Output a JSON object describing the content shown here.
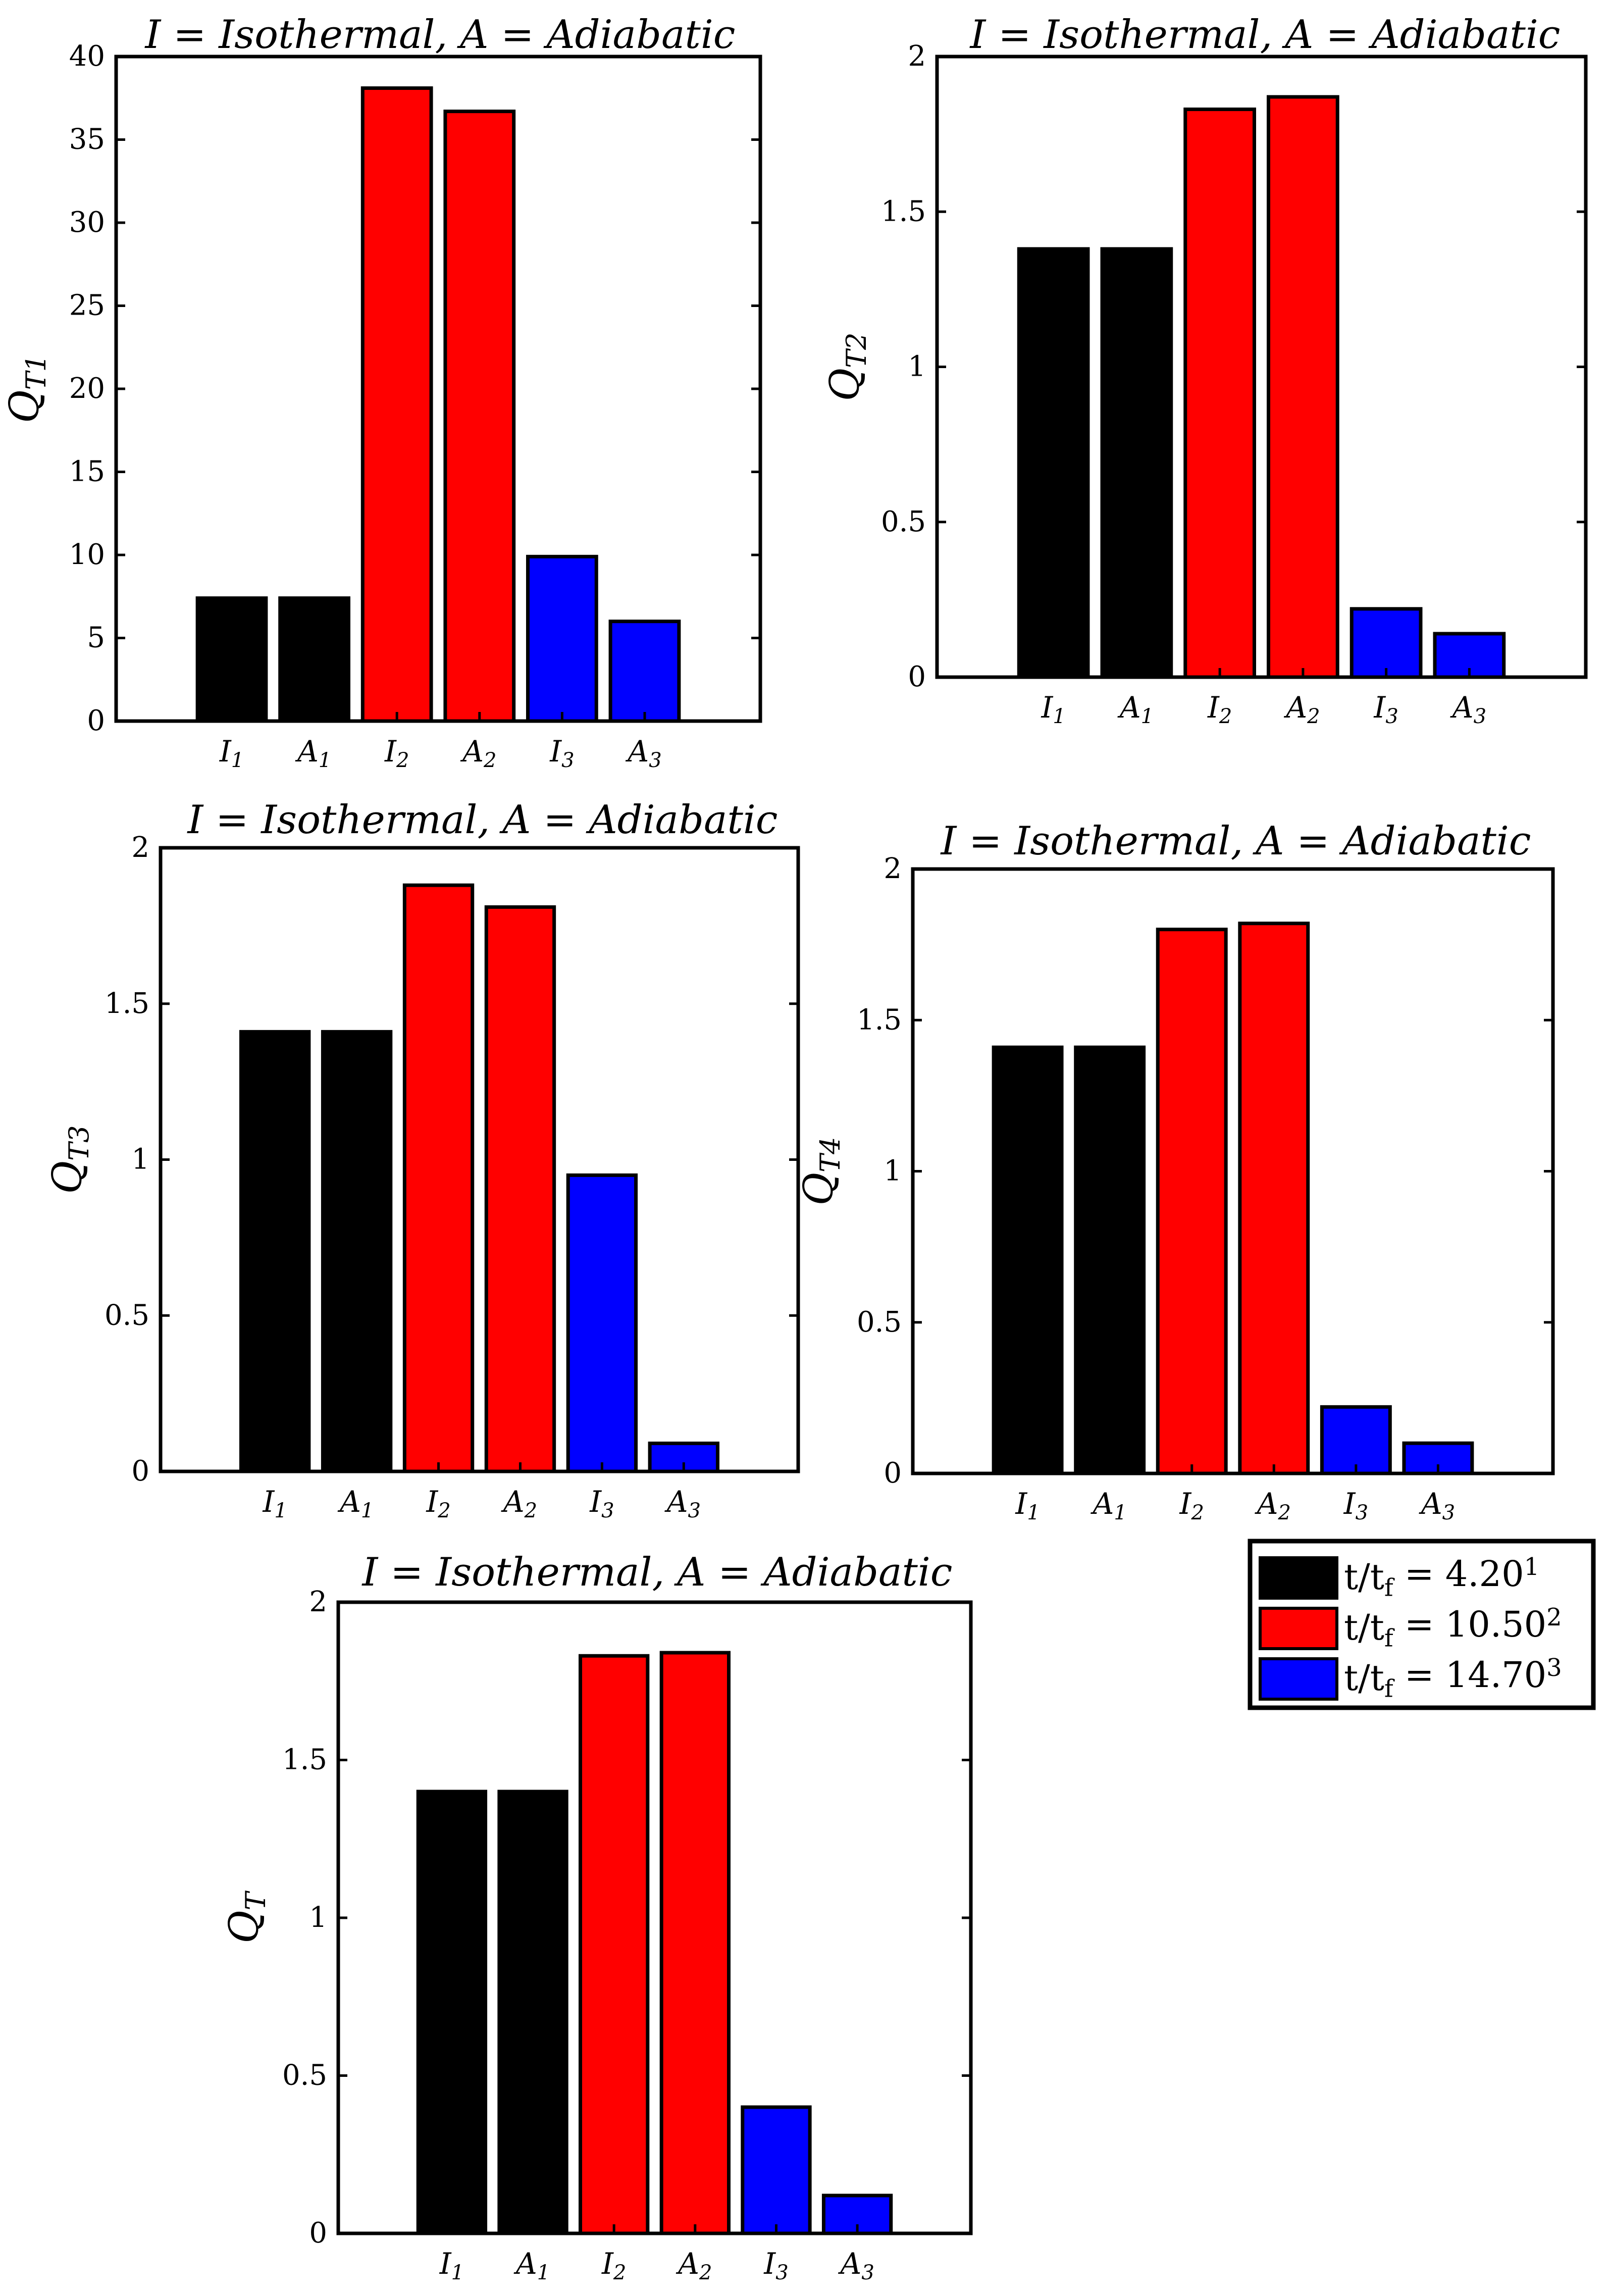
{
  "figure_title": "I = Isothermal, A = Adiabatic",
  "legend": [
    {
      "label": "t/t_f = 4.20^1",
      "color": "#000000"
    },
    {
      "label": "t/t_f = 10.50^2",
      "color": "#ff0000"
    },
    {
      "label": "t/t_f = 14.70^3",
      "color": "#0000ff"
    }
  ],
  "chart_data": [
    {
      "type": "bar",
      "title": "I = Isothermal, A = Adiabatic",
      "ylabel": "Q_T1",
      "categories": [
        "I_1",
        "A_1",
        "I_2",
        "A_2",
        "I_3",
        "A_3"
      ],
      "values": [
        7.4,
        7.4,
        38.1,
        36.7,
        9.9,
        6.0
      ],
      "colors": [
        "#000000",
        "#000000",
        "#ff0000",
        "#ff0000",
        "#0000ff",
        "#0000ff"
      ],
      "ylim": [
        0,
        40
      ],
      "yticks": [
        0,
        5,
        10,
        15,
        20,
        25,
        30,
        35,
        40
      ]
    },
    {
      "type": "bar",
      "title": "I = Isothermal, A = Adiabatic",
      "ylabel": "Q_T2",
      "categories": [
        "I_1",
        "A_1",
        "I_2",
        "A_2",
        "I_3",
        "A_3"
      ],
      "values": [
        1.38,
        1.38,
        1.83,
        1.87,
        0.22,
        0.14
      ],
      "colors": [
        "#000000",
        "#000000",
        "#ff0000",
        "#ff0000",
        "#0000ff",
        "#0000ff"
      ],
      "ylim": [
        0,
        2
      ],
      "yticks": [
        0,
        0.5,
        1,
        1.5,
        2
      ]
    },
    {
      "type": "bar",
      "title": "I = Isothermal, A = Adiabatic",
      "ylabel": "Q_T3",
      "categories": [
        "I_1",
        "A_1",
        "I_2",
        "A_2",
        "I_3",
        "A_3"
      ],
      "values": [
        1.41,
        1.41,
        1.88,
        1.81,
        0.95,
        0.09
      ],
      "colors": [
        "#000000",
        "#000000",
        "#ff0000",
        "#ff0000",
        "#0000ff",
        "#0000ff"
      ],
      "ylim": [
        0,
        2
      ],
      "yticks": [
        0,
        0.5,
        1,
        1.5,
        2
      ]
    },
    {
      "type": "bar",
      "title": "I = Isothermal, A = Adiabatic",
      "ylabel": "Q_T4",
      "categories": [
        "I_1",
        "A_1",
        "I_2",
        "A_2",
        "I_3",
        "A_3"
      ],
      "values": [
        1.41,
        1.41,
        1.8,
        1.82,
        0.22,
        0.1
      ],
      "colors": [
        "#000000",
        "#000000",
        "#ff0000",
        "#ff0000",
        "#0000ff",
        "#0000ff"
      ],
      "ylim": [
        0,
        2
      ],
      "yticks": [
        0,
        0.5,
        1,
        1.5,
        2
      ]
    },
    {
      "type": "bar",
      "title": "I = Isothermal, A = Adiabatic",
      "ylabel": "Q_T",
      "categories": [
        "I_1",
        "A_1",
        "I_2",
        "A_2",
        "I_3",
        "A_3"
      ],
      "values": [
        1.4,
        1.4,
        1.83,
        1.84,
        0.4,
        0.12
      ],
      "colors": [
        "#000000",
        "#000000",
        "#ff0000",
        "#ff0000",
        "#0000ff",
        "#0000ff"
      ],
      "ylim": [
        0,
        2
      ],
      "yticks": [
        0,
        0.5,
        1,
        1.5,
        2
      ]
    }
  ]
}
